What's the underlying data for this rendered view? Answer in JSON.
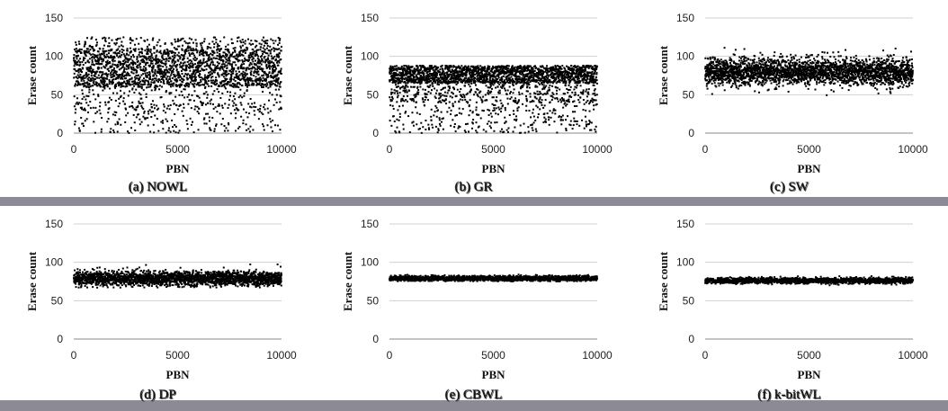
{
  "chart_data": [
    {
      "type": "scatter",
      "caption": "(a) NOWL",
      "xlabel": "PBN",
      "ylabel": "Erase count",
      "xlim": [
        0,
        10000
      ],
      "ylim": [
        0,
        150
      ],
      "xticks": [
        0,
        5000,
        10000
      ],
      "yticks": [
        0,
        50,
        100,
        150
      ],
      "grid": "horizontal",
      "series": [
        {
          "distribution": "wide",
          "center": 80,
          "upper": 125,
          "lower": 0,
          "core_low": 60,
          "core_high": 110,
          "points": 2600
        }
      ]
    },
    {
      "type": "scatter",
      "caption": "(b) GR",
      "xlabel": "PBN",
      "ylabel": "Erase count",
      "xlim": [
        0,
        10000
      ],
      "ylim": [
        0,
        150
      ],
      "xticks": [
        0,
        5000,
        10000
      ],
      "yticks": [
        0,
        50,
        100,
        150
      ],
      "grid": "horizontal",
      "series": [
        {
          "distribution": "capped",
          "center": 82,
          "upper": 88,
          "lower": 0,
          "core_low": 65,
          "core_high": 88,
          "points": 2600
        }
      ]
    },
    {
      "type": "scatter",
      "caption": "(c) SW",
      "xlabel": "PBN",
      "ylabel": "Erase count",
      "xlim": [
        0,
        10000
      ],
      "ylim": [
        0,
        150
      ],
      "xticks": [
        0,
        5000,
        10000
      ],
      "yticks": [
        0,
        50,
        100,
        150
      ],
      "grid": "horizontal",
      "series": [
        {
          "distribution": "band",
          "center": 80,
          "upper": 118,
          "lower": 40,
          "core_low": 62,
          "core_high": 98,
          "points": 2600
        }
      ]
    },
    {
      "type": "scatter",
      "caption": "(d) DP",
      "xlabel": "PBN",
      "ylabel": "Erase count",
      "xlim": [
        0,
        10000
      ],
      "ylim": [
        0,
        150
      ],
      "xticks": [
        0,
        5000,
        10000
      ],
      "yticks": [
        0,
        50,
        100,
        150
      ],
      "grid": "horizontal",
      "series": [
        {
          "distribution": "band",
          "center": 79,
          "upper": 100,
          "lower": 67,
          "core_low": 70,
          "core_high": 90,
          "points": 2200
        }
      ]
    },
    {
      "type": "scatter",
      "caption": "(e) CBWL",
      "xlabel": "PBN",
      "ylabel": "Erase count",
      "xlim": [
        0,
        10000
      ],
      "ylim": [
        0,
        150
      ],
      "xticks": [
        0,
        5000,
        10000
      ],
      "yticks": [
        0,
        50,
        100,
        150
      ],
      "grid": "horizontal",
      "series": [
        {
          "distribution": "band",
          "center": 79,
          "upper": 84,
          "lower": 75,
          "core_low": 76,
          "core_high": 83,
          "points": 1600
        }
      ]
    },
    {
      "type": "scatter",
      "caption": "(f) k-bitWL",
      "xlabel": "PBN",
      "ylabel": "Erase count",
      "xlim": [
        0,
        10000
      ],
      "ylim": [
        0,
        150
      ],
      "xticks": [
        0,
        5000,
        10000
      ],
      "yticks": [
        0,
        50,
        100,
        150
      ],
      "grid": "horizontal",
      "series": [
        {
          "distribution": "band",
          "center": 76,
          "upper": 82,
          "lower": 70,
          "core_low": 72,
          "core_high": 80,
          "points": 1600
        }
      ]
    }
  ]
}
